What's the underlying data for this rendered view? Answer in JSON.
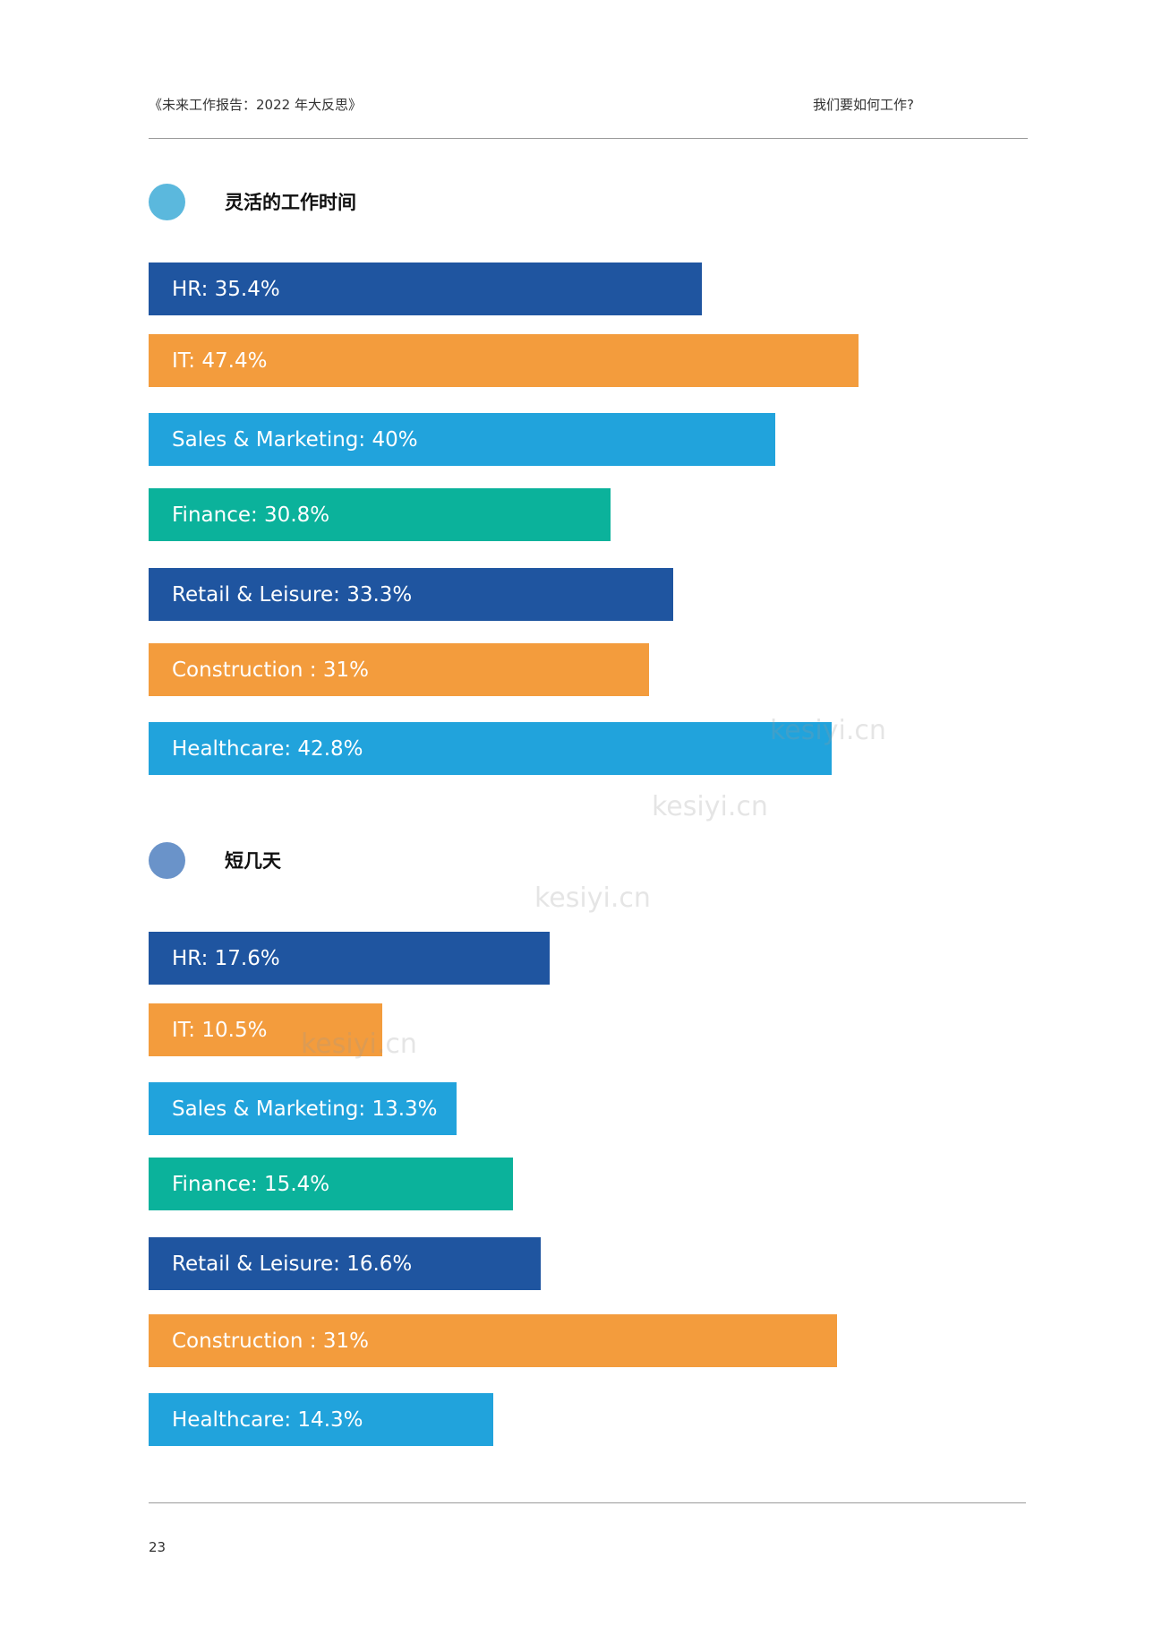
{
  "header": {
    "left": "《未来工作报告：2022 年大反思》",
    "right": "我们要如何工作?"
  },
  "colors": {
    "dark_blue": "#1f55a0",
    "orange": "#f39c3d",
    "light_blue": "#21a3dc",
    "teal": "#0bb29b",
    "dot_section1": "#5bb8dd",
    "dot_section2": "#6a93c9"
  },
  "sections": [
    {
      "title": "灵活的工作时间",
      "bars": [
        {
          "label": "HR: 35.4%",
          "value": 35.4,
          "color": "#1f55a0"
        },
        {
          "label": "IT: 47.4%",
          "value": 47.4,
          "color": "#f39c3d"
        },
        {
          "label": "Sales & Marketing: 40%",
          "value": 40,
          "color": "#21a3dc"
        },
        {
          "label": "Finance: 30.8%",
          "value": 30.8,
          "color": "#0bb29b"
        },
        {
          "label": "Retail & Leisure: 33.3%",
          "value": 33.3,
          "color": "#1f55a0"
        },
        {
          "label": "Construction : 31%",
          "value": 31,
          "color": "#f39c3d"
        },
        {
          "label": "Healthcare: 42.8%",
          "value": 42.8,
          "color": "#21a3dc"
        }
      ]
    },
    {
      "title": "短几天",
      "bars": [
        {
          "label": "HR: 17.6%",
          "value": 17.6,
          "color": "#1f55a0"
        },
        {
          "label": "IT: 10.5%",
          "value": 10.5,
          "color": "#f39c3d"
        },
        {
          "label": "Sales & Marketing: 13.3%",
          "value": 13.3,
          "color": "#21a3dc"
        },
        {
          "label": "Finance: 15.4%",
          "value": 15.4,
          "color": "#0bb29b"
        },
        {
          "label": "Retail & Leisure: 16.6%",
          "value": 16.6,
          "color": "#1f55a0"
        },
        {
          "label": "Construction : 31%",
          "value": 31,
          "color": "#f39c3d"
        },
        {
          "label": "Healthcare: 14.3%",
          "value": 14.3,
          "color": "#21a3dc"
        }
      ]
    }
  ],
  "watermark": "kesiyi.cn",
  "page_number": "23"
}
